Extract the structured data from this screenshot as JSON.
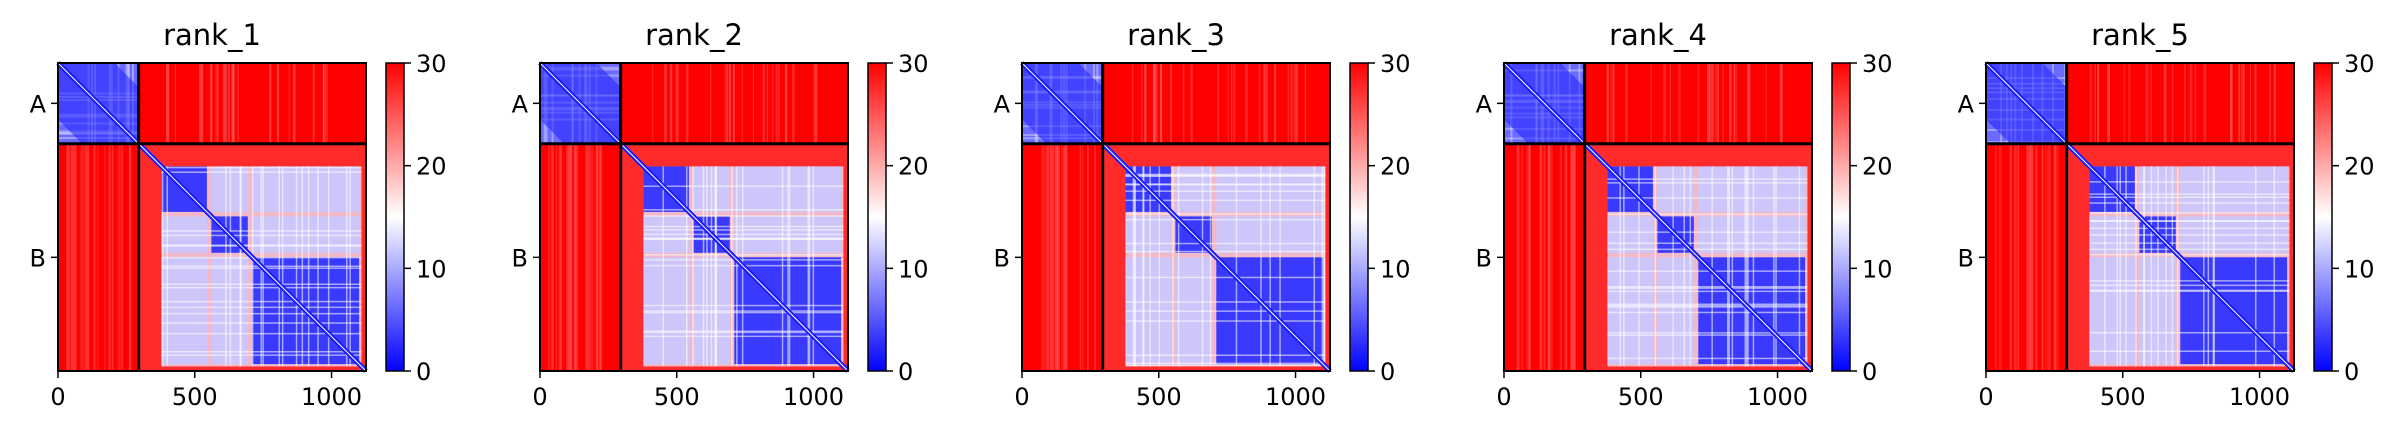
{
  "chart_data": [
    {
      "type": "heatmap",
      "title": "rank_1",
      "chains": [
        "A",
        "B"
      ],
      "chain_boundary": 295,
      "x_ticks": [
        0,
        500,
        1000
      ],
      "x_tick_labels": [
        "0",
        "500",
        "1000"
      ],
      "xlim": [
        0,
        1126
      ],
      "colorbar": {
        "min": 0,
        "max": 30,
        "ticks": [
          0,
          10,
          20,
          30
        ],
        "tick_labels": [
          "0",
          "10",
          "20",
          "30"
        ],
        "colormap": [
          "#0000ff",
          "#ffffff",
          "#ff0000"
        ]
      }
    },
    {
      "type": "heatmap",
      "title": "rank_2",
      "chains": [
        "A",
        "B"
      ],
      "chain_boundary": 295,
      "x_ticks": [
        0,
        500,
        1000
      ],
      "x_tick_labels": [
        "0",
        "500",
        "1000"
      ],
      "xlim": [
        0,
        1126
      ],
      "colorbar": {
        "min": 0,
        "max": 30,
        "ticks": [
          0,
          10,
          20,
          30
        ],
        "tick_labels": [
          "0",
          "10",
          "20",
          "30"
        ],
        "colormap": [
          "#0000ff",
          "#ffffff",
          "#ff0000"
        ]
      }
    },
    {
      "type": "heatmap",
      "title": "rank_3",
      "chains": [
        "A",
        "B"
      ],
      "chain_boundary": 295,
      "x_ticks": [
        0,
        500,
        1000
      ],
      "x_tick_labels": [
        "0",
        "500",
        "1000"
      ],
      "xlim": [
        0,
        1126
      ],
      "colorbar": {
        "min": 0,
        "max": 30,
        "ticks": [
          0,
          10,
          20,
          30
        ],
        "tick_labels": [
          "0",
          "10",
          "20",
          "30"
        ],
        "colormap": [
          "#0000ff",
          "#ffffff",
          "#ff0000"
        ]
      }
    },
    {
      "type": "heatmap",
      "title": "rank_4",
      "chains": [
        "A",
        "B"
      ],
      "chain_boundary": 295,
      "x_ticks": [
        0,
        500,
        1000
      ],
      "x_tick_labels": [
        "0",
        "500",
        "1000"
      ],
      "xlim": [
        0,
        1126
      ],
      "colorbar": {
        "min": 0,
        "max": 30,
        "ticks": [
          0,
          10,
          20,
          30
        ],
        "tick_labels": [
          "0",
          "10",
          "20",
          "30"
        ],
        "colormap": [
          "#0000ff",
          "#ffffff",
          "#ff0000"
        ]
      }
    },
    {
      "type": "heatmap",
      "title": "rank_5",
      "chains": [
        "A",
        "B"
      ],
      "chain_boundary": 295,
      "x_ticks": [
        0,
        500,
        1000
      ],
      "x_tick_labels": [
        "0",
        "500",
        "1000"
      ],
      "xlim": [
        0,
        1126
      ],
      "colorbar": {
        "min": 0,
        "max": 30,
        "ticks": [
          0,
          10,
          20,
          30
        ],
        "tick_labels": [
          "0",
          "10",
          "20",
          "30"
        ],
        "colormap": [
          "#0000ff",
          "#ffffff",
          "#ff0000"
        ]
      }
    }
  ]
}
